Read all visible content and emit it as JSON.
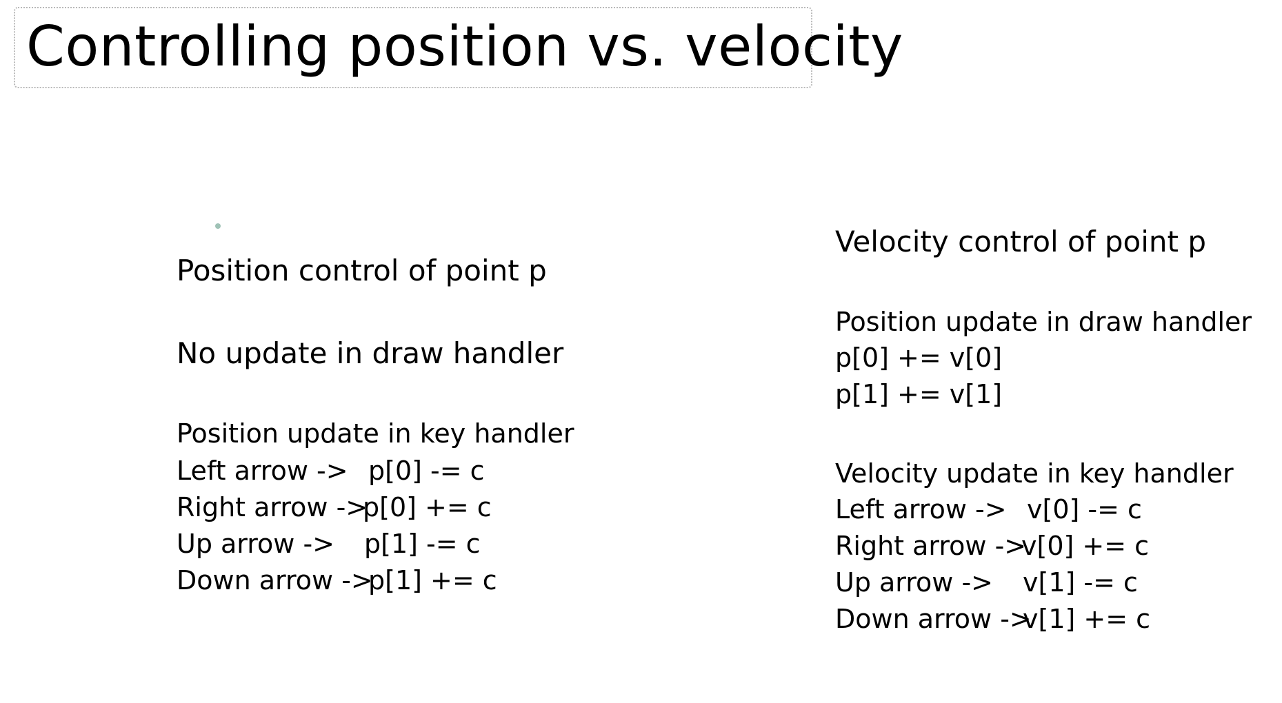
{
  "title": "Controlling position vs. velocity",
  "left": {
    "heading": "Position control of point p",
    "draw_note": "No update in draw handler",
    "key_heading": "Position update in key handler",
    "mappings": [
      {
        "key": "Left arrow ->",
        "op": "p[0] -= c"
      },
      {
        "key": "Right arrow ->",
        "op": "p[0] += c"
      },
      {
        "key": "Up arrow ->",
        "op": "p[1] -= c"
      },
      {
        "key": "Down arrow ->",
        "op": "p[1] += c"
      }
    ]
  },
  "right": {
    "heading": "Velocity control of point p",
    "draw_heading": "Position update in draw handler",
    "draw_lines": [
      "p[0] += v[0]",
      "p[1] += v[1]"
    ],
    "key_heading": "Velocity update in key handler",
    "mappings": [
      {
        "key": "Left arrow ->",
        "op": "v[0] -= c"
      },
      {
        "key": "Right arrow ->",
        "op": "v[0] += c"
      },
      {
        "key": "Up arrow ->",
        "op": "v[1] -= c"
      },
      {
        "key": "Down arrow ->",
        "op": "v[1] += c"
      }
    ]
  }
}
